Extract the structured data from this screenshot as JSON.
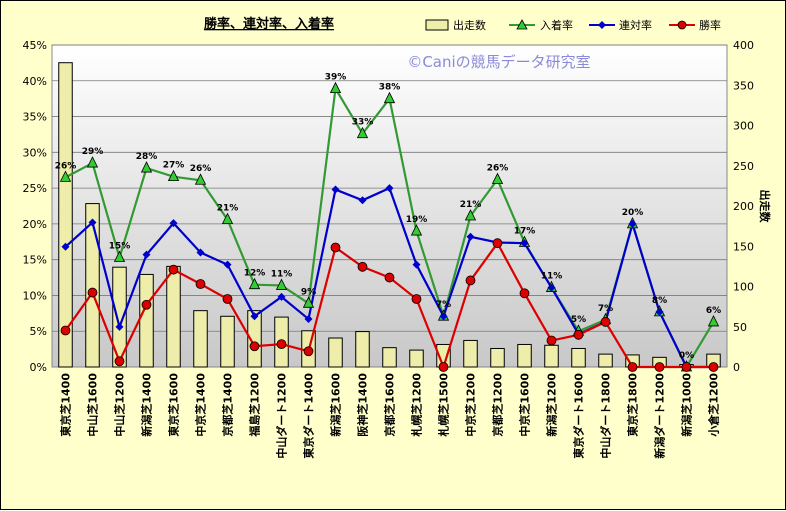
{
  "chart_data": {
    "type": "bar+line",
    "title": "勝率、連対率、入着率",
    "watermark": "©Caniの競馬データ研究室",
    "ylabel_right": "出走数",
    "y_left": {
      "min": 0,
      "max": 45,
      "step": 5,
      "format": "percent"
    },
    "y_right": {
      "min": 0,
      "max": 400,
      "step": 50
    },
    "grid": true,
    "legend_position": "top-right",
    "categories": [
      "東京芝1400",
      "中山芝1600",
      "中山芝1200",
      "新潟芝1400",
      "東京芝1600",
      "中京芝1400",
      "京都芝1400",
      "福島芝1200",
      "中山ダート1200",
      "東京ダート1400",
      "新潟芝1600",
      "阪神芝1400",
      "京都芝1600",
      "札幌芝1200",
      "札幌芝1500",
      "中京芝1200",
      "京都芝1200",
      "中京芝1600",
      "新潟芝1200",
      "東京ダート1600",
      "中山ダート1800",
      "東京芝1800",
      "新潟ダート1200",
      "新潟芝1000",
      "小倉芝1200"
    ],
    "bars": {
      "name": "出走数",
      "color": "#eeeeaa",
      "values": [
        378,
        203,
        124,
        115,
        125,
        70,
        63,
        70,
        62,
        45,
        36,
        44,
        24,
        21,
        28,
        33,
        23,
        28,
        27,
        23,
        16,
        15,
        12,
        3,
        16
      ]
    },
    "series": [
      {
        "name": "入着率",
        "color": "#339933",
        "marker": "triangle",
        "values": [
          26.5,
          28.5,
          15.3,
          27.8,
          26.6,
          26.1,
          20.6,
          11.5,
          11.4,
          8.9,
          38.9,
          32.6,
          37.5,
          19.0,
          7.1,
          21.1,
          26.2,
          17.4,
          11.1,
          5.0,
          6.6,
          20.0,
          7.7,
          0,
          6.3
        ],
        "labels": [
          "26%",
          "29%",
          "15%",
          "28%",
          "27%",
          "26%",
          "21%",
          "12%",
          "11%",
          "9%",
          "39%",
          "33%",
          "38%",
          "19%",
          "7%",
          "21%",
          "26%",
          "17%",
          "11%",
          "5%",
          "7%",
          "20%",
          "8%",
          "0%",
          "6%"
        ]
      },
      {
        "name": "連対率",
        "color": "#0000cc",
        "marker": "diamond",
        "values": [
          16.8,
          20.2,
          5.6,
          15.7,
          20.1,
          16.0,
          14.3,
          7.1,
          9.8,
          6.7,
          24.8,
          23.3,
          25.0,
          14.3,
          7.1,
          18.2,
          17.4,
          17.3,
          11.1,
          4.6,
          6.3,
          20.0,
          7.7,
          0,
          0
        ]
      },
      {
        "name": "勝率",
        "color": "#dd0000",
        "marker": "circle",
        "values": [
          5.1,
          10.4,
          0.8,
          8.7,
          13.6,
          11.6,
          9.5,
          2.9,
          3.2,
          2.2,
          16.7,
          14.0,
          12.5,
          9.5,
          0,
          12.1,
          17.3,
          10.3,
          3.7,
          4.5,
          6.3,
          0,
          0,
          0,
          0
        ]
      }
    ],
    "legend": [
      "出走数",
      "入着率",
      "連対率",
      "勝率"
    ]
  }
}
